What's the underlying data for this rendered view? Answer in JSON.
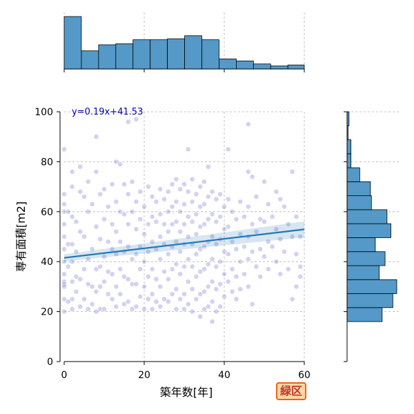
{
  "badge": {
    "label": "緑区",
    "color": "#e8621a",
    "fill": "#ffd9a6"
  },
  "chart_data": {
    "type": "scatter",
    "xlabel": "築年数[年]",
    "ylabel": "専有面積[m2]",
    "xlim": [
      0,
      60
    ],
    "ylim": [
      0,
      100
    ],
    "xticks": [
      0,
      20,
      40,
      60
    ],
    "yticks": [
      0,
      20,
      40,
      60,
      80,
      100
    ],
    "grid": true,
    "annotation": "y=0.19x+41.53",
    "regression": {
      "slope": 0.19,
      "intercept": 41.53,
      "color": "#1f77b4"
    },
    "point_color": "#5c5ccc",
    "hist_color": "#5499c7",
    "points": [
      [
        0,
        85
      ],
      [
        0,
        67
      ],
      [
        0,
        63
      ],
      [
        0,
        60
      ],
      [
        0,
        55
      ],
      [
        0,
        50
      ],
      [
        0,
        45
      ],
      [
        0,
        40
      ],
      [
        0,
        35
      ],
      [
        0,
        32
      ],
      [
        0,
        31
      ],
      [
        0,
        30
      ],
      [
        0,
        25
      ],
      [
        0,
        20
      ],
      [
        1,
        60
      ],
      [
        1,
        47
      ],
      [
        1,
        38
      ],
      [
        1,
        24
      ],
      [
        2,
        76
      ],
      [
        2,
        70
      ],
      [
        2,
        58
      ],
      [
        2,
        47
      ],
      [
        2,
        40
      ],
      [
        2,
        32
      ],
      [
        2,
        25
      ],
      [
        2,
        21
      ],
      [
        3,
        56
      ],
      [
        3,
        44
      ],
      [
        3,
        34
      ],
      [
        3,
        28
      ],
      [
        4,
        78
      ],
      [
        4,
        68
      ],
      [
        4,
        52
      ],
      [
        4,
        33
      ],
      [
        4,
        22
      ],
      [
        5,
        66
      ],
      [
        5,
        50
      ],
      [
        5,
        37
      ],
      [
        5,
        25
      ],
      [
        6,
        72
      ],
      [
        6,
        60
      ],
      [
        6,
        41
      ],
      [
        6,
        31
      ],
      [
        6,
        21
      ],
      [
        7,
        63
      ],
      [
        7,
        45
      ],
      [
        7,
        30
      ],
      [
        7,
        23
      ],
      [
        8,
        90
      ],
      [
        8,
        76
      ],
      [
        8,
        54
      ],
      [
        8,
        37
      ],
      [
        8,
        28
      ],
      [
        8,
        20
      ],
      [
        9,
        67
      ],
      [
        9,
        49
      ],
      [
        9,
        38
      ],
      [
        9,
        30
      ],
      [
        9,
        21
      ],
      [
        10,
        69
      ],
      [
        10,
        57
      ],
      [
        10,
        42
      ],
      [
        10,
        32
      ],
      [
        10,
        21
      ],
      [
        11,
        62
      ],
      [
        11,
        48
      ],
      [
        11,
        36
      ],
      [
        11,
        27
      ],
      [
        12,
        71
      ],
      [
        12,
        55
      ],
      [
        12,
        45
      ],
      [
        12,
        35
      ],
      [
        12,
        25
      ],
      [
        13,
        80
      ],
      [
        13,
        64
      ],
      [
        13,
        52
      ],
      [
        13,
        43
      ],
      [
        13,
        30
      ],
      [
        13,
        22
      ],
      [
        14,
        79
      ],
      [
        14,
        60
      ],
      [
        14,
        48
      ],
      [
        14,
        37
      ],
      [
        14,
        27
      ],
      [
        15,
        71
      ],
      [
        15,
        59
      ],
      [
        15,
        44
      ],
      [
        15,
        34
      ],
      [
        15,
        23
      ],
      [
        16,
        96
      ],
      [
        16,
        67
      ],
      [
        16,
        55
      ],
      [
        16,
        46
      ],
      [
        16,
        33
      ],
      [
        16,
        24
      ],
      [
        17,
        72
      ],
      [
        17,
        60
      ],
      [
        17,
        41
      ],
      [
        17,
        31
      ],
      [
        17,
        21
      ],
      [
        18,
        97
      ],
      [
        18,
        64
      ],
      [
        18,
        53
      ],
      [
        18,
        43
      ],
      [
        18,
        31
      ],
      [
        18,
        22
      ],
      [
        19,
        68
      ],
      [
        19,
        57
      ],
      [
        19,
        46
      ],
      [
        19,
        37
      ],
      [
        19,
        26
      ],
      [
        20,
        62
      ],
      [
        20,
        51
      ],
      [
        20,
        40
      ],
      [
        20,
        30
      ],
      [
        20,
        21
      ],
      [
        21,
        70
      ],
      [
        21,
        55
      ],
      [
        21,
        44
      ],
      [
        21,
        34
      ],
      [
        21,
        25
      ],
      [
        22,
        66
      ],
      [
        22,
        58
      ],
      [
        22,
        48
      ],
      [
        22,
        37
      ],
      [
        22,
        27
      ],
      [
        22,
        21
      ],
      [
        23,
        64
      ],
      [
        23,
        56
      ],
      [
        23,
        45
      ],
      [
        23,
        33
      ],
      [
        23,
        24
      ],
      [
        24,
        69
      ],
      [
        24,
        59
      ],
      [
        24,
        50
      ],
      [
        24,
        41
      ],
      [
        24,
        30
      ],
      [
        24,
        22
      ],
      [
        25,
        65
      ],
      [
        25,
        55
      ],
      [
        25,
        47
      ],
      [
        25,
        36
      ],
      [
        25,
        25
      ],
      [
        26,
        68
      ],
      [
        26,
        60
      ],
      [
        26,
        52
      ],
      [
        26,
        43
      ],
      [
        26,
        33
      ],
      [
        26,
        24
      ],
      [
        27,
        71
      ],
      [
        27,
        62
      ],
      [
        27,
        55
      ],
      [
        27,
        46
      ],
      [
        27,
        37
      ],
      [
        27,
        27
      ],
      [
        28,
        73
      ],
      [
        28,
        64
      ],
      [
        28,
        56
      ],
      [
        28,
        48
      ],
      [
        28,
        39
      ],
      [
        28,
        29
      ],
      [
        28,
        21
      ],
      [
        29,
        69
      ],
      [
        29,
        60
      ],
      [
        29,
        52
      ],
      [
        29,
        44
      ],
      [
        29,
        35
      ],
      [
        29,
        25
      ],
      [
        30,
        71
      ],
      [
        30,
        63
      ],
      [
        30,
        55
      ],
      [
        30,
        47
      ],
      [
        30,
        38
      ],
      [
        30,
        27
      ],
      [
        30,
        21
      ],
      [
        31,
        85
      ],
      [
        31,
        68
      ],
      [
        31,
        58
      ],
      [
        31,
        50
      ],
      [
        31,
        41
      ],
      [
        31,
        32
      ],
      [
        31,
        23
      ],
      [
        32,
        73
      ],
      [
        32,
        64
      ],
      [
        32,
        56
      ],
      [
        32,
        47
      ],
      [
        32,
        38
      ],
      [
        32,
        29
      ],
      [
        32,
        20
      ],
      [
        33,
        67
      ],
      [
        33,
        59
      ],
      [
        33,
        51
      ],
      [
        33,
        43
      ],
      [
        33,
        34
      ],
      [
        33,
        25
      ],
      [
        34,
        70
      ],
      [
        34,
        62
      ],
      [
        34,
        54
      ],
      [
        34,
        45
      ],
      [
        34,
        36
      ],
      [
        34,
        27
      ],
      [
        34,
        18
      ],
      [
        35,
        72
      ],
      [
        35,
        63
      ],
      [
        35,
        55
      ],
      [
        35,
        46
      ],
      [
        35,
        37
      ],
      [
        35,
        28
      ],
      [
        35,
        21
      ],
      [
        36,
        78
      ],
      [
        36,
        66
      ],
      [
        36,
        57
      ],
      [
        36,
        48
      ],
      [
        36,
        39
      ],
      [
        36,
        30
      ],
      [
        36,
        22
      ],
      [
        37,
        68
      ],
      [
        37,
        59
      ],
      [
        37,
        50
      ],
      [
        37,
        41
      ],
      [
        37,
        32
      ],
      [
        37,
        24
      ],
      [
        37,
        16
      ],
      [
        38,
        65
      ],
      [
        38,
        56
      ],
      [
        38,
        47
      ],
      [
        38,
        38
      ],
      [
        38,
        29
      ],
      [
        38,
        20
      ],
      [
        39,
        67
      ],
      [
        39,
        58
      ],
      [
        39,
        49
      ],
      [
        39,
        40
      ],
      [
        39,
        31
      ],
      [
        39,
        22
      ],
      [
        40,
        62
      ],
      [
        40,
        53
      ],
      [
        40,
        44
      ],
      [
        40,
        35
      ],
      [
        40,
        26
      ],
      [
        41,
        85
      ],
      [
        41,
        65
      ],
      [
        41,
        54
      ],
      [
        41,
        43
      ],
      [
        41,
        32
      ],
      [
        42,
        60
      ],
      [
        42,
        48
      ],
      [
        42,
        37
      ],
      [
        42,
        28
      ],
      [
        43,
        57
      ],
      [
        43,
        45
      ],
      [
        43,
        34
      ],
      [
        43,
        25
      ],
      [
        44,
        64
      ],
      [
        44,
        51
      ],
      [
        44,
        40
      ],
      [
        44,
        29
      ],
      [
        45,
        58
      ],
      [
        45,
        46
      ],
      [
        45,
        35
      ],
      [
        46,
        95
      ],
      [
        46,
        76
      ],
      [
        46,
        62
      ],
      [
        46,
        50
      ],
      [
        46,
        41
      ],
      [
        46,
        30
      ],
      [
        47,
        74
      ],
      [
        47,
        55
      ],
      [
        47,
        44
      ],
      [
        47,
        23
      ],
      [
        48,
        66
      ],
      [
        48,
        52
      ],
      [
        48,
        38
      ],
      [
        49,
        57
      ],
      [
        49,
        45
      ],
      [
        49,
        34
      ],
      [
        50,
        72
      ],
      [
        50,
        56
      ],
      [
        50,
        42
      ],
      [
        51,
        63
      ],
      [
        51,
        48
      ],
      [
        51,
        37
      ],
      [
        52,
        58
      ],
      [
        52,
        46
      ],
      [
        53,
        68
      ],
      [
        53,
        53
      ],
      [
        53,
        40
      ],
      [
        54,
        65
      ],
      [
        54,
        49
      ],
      [
        54,
        35
      ],
      [
        55,
        62
      ],
      [
        55,
        44
      ],
      [
        56,
        55
      ],
      [
        56,
        37
      ],
      [
        57,
        76
      ],
      [
        57,
        50
      ],
      [
        57,
        25
      ],
      [
        58,
        58
      ],
      [
        58,
        43
      ],
      [
        58,
        30
      ],
      [
        59,
        50
      ],
      [
        59,
        38
      ],
      [
        59,
        34
      ]
    ],
    "x_hist": {
      "bins": [
        [
          0,
          4.3
        ],
        [
          4.3,
          8.6
        ],
        [
          8.6,
          12.9
        ],
        [
          12.9,
          17.2
        ],
        [
          17.2,
          21.5
        ],
        [
          21.5,
          25.8
        ],
        [
          25.8,
          30.1
        ],
        [
          30.1,
          34.4
        ],
        [
          34.4,
          38.7
        ],
        [
          38.7,
          43.0
        ],
        [
          43.0,
          47.3
        ],
        [
          47.3,
          51.6
        ],
        [
          51.6,
          55.9
        ],
        [
          55.9,
          60.2
        ]
      ],
      "counts": [
        52,
        18,
        24,
        25,
        29,
        29,
        30,
        33,
        29,
        10,
        8,
        5,
        3,
        4
      ]
    },
    "y_hist": {
      "bins": [
        [
          16,
          21.6
        ],
        [
          21.6,
          27.2
        ],
        [
          27.2,
          32.8
        ],
        [
          32.8,
          38.4
        ],
        [
          38.4,
          44.0
        ],
        [
          44.0,
          49.6
        ],
        [
          49.6,
          55.2
        ],
        [
          55.2,
          60.8
        ],
        [
          60.8,
          66.4
        ],
        [
          66.4,
          72.0
        ],
        [
          72.0,
          77.6
        ],
        [
          77.6,
          83.2
        ],
        [
          83.2,
          88.8
        ],
        [
          88.8,
          94.4
        ],
        [
          94.4,
          100
        ]
      ],
      "counts": [
        36,
        47,
        51,
        33,
        39,
        29,
        45,
        41,
        25,
        24,
        13,
        4,
        4,
        1,
        2
      ]
    }
  }
}
